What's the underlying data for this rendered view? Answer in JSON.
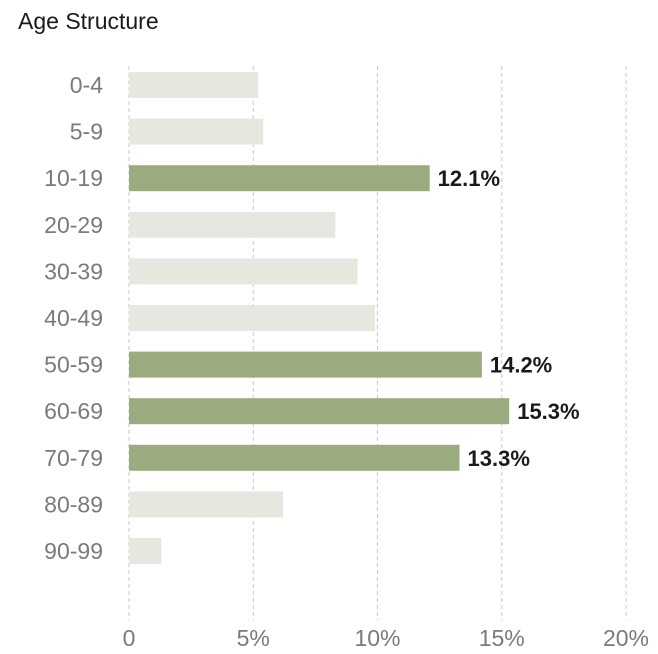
{
  "chart_data": {
    "type": "bar",
    "orientation": "horizontal",
    "title": "Age Structure",
    "categories": [
      "0-4",
      "5-9",
      "10-19",
      "20-29",
      "30-39",
      "40-49",
      "50-59",
      "60-69",
      "70-79",
      "80-89",
      "90-99"
    ],
    "values": [
      5.2,
      5.4,
      12.1,
      8.3,
      9.2,
      9.9,
      14.2,
      15.3,
      13.3,
      6.2,
      1.3
    ],
    "highlighted": [
      false,
      false,
      true,
      false,
      false,
      false,
      true,
      true,
      true,
      false,
      false
    ],
    "data_labels": [
      "",
      "",
      "12.1%",
      "",
      "",
      "",
      "14.2%",
      "15.3%",
      "13.3%",
      "",
      ""
    ],
    "xlim": [
      0,
      20
    ],
    "x_ticks": [
      0,
      5,
      10,
      15,
      20
    ],
    "x_tick_labels": [
      "0",
      "5%",
      "10%",
      "15%",
      "20%"
    ],
    "grid": true,
    "colors": {
      "highlight": "#9bab80",
      "normal": "#e6e8df"
    }
  }
}
